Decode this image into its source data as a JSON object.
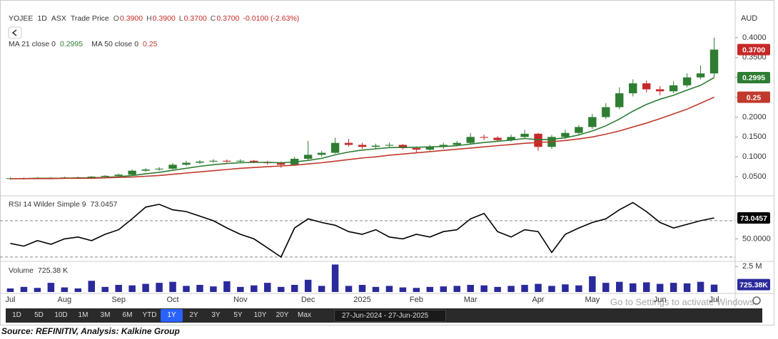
{
  "header": {
    "symbol": "YOJEE",
    "interval": "1D",
    "exchange": "ASX",
    "price_type": "Trade Price",
    "ohlc": [
      {
        "label": "O",
        "value": "0.3900"
      },
      {
        "label": "H",
        "value": "0.3900"
      },
      {
        "label": "L",
        "value": "0.3700"
      },
      {
        "label": "C",
        "value": "0.3700"
      }
    ],
    "change": "-0.0100 (-2.63%)"
  },
  "currency": "AUD",
  "chart_data": [
    {
      "type": "candlestick",
      "open": [
        0.045,
        0.046,
        0.046,
        0.047,
        0.047,
        0.048,
        0.048,
        0.05,
        0.052,
        0.055,
        0.065,
        0.068,
        0.07,
        0.08,
        0.085,
        0.088,
        0.09,
        0.088,
        0.09,
        0.087,
        0.084,
        0.08,
        0.095,
        0.105,
        0.11,
        0.135,
        0.13,
        0.125,
        0.128,
        0.13,
        0.122,
        0.118,
        0.125,
        0.13,
        0.135,
        0.15,
        0.148,
        0.142,
        0.15,
        0.158,
        0.125,
        0.15,
        0.16,
        0.175,
        0.2,
        0.225,
        0.26,
        0.285,
        0.27,
        0.265,
        0.28,
        0.3,
        0.31
      ],
      "high": [
        0.048,
        0.048,
        0.049,
        0.049,
        0.05,
        0.05,
        0.052,
        0.054,
        0.058,
        0.068,
        0.072,
        0.074,
        0.084,
        0.09,
        0.092,
        0.094,
        0.093,
        0.094,
        0.092,
        0.09,
        0.088,
        0.1,
        0.14,
        0.115,
        0.148,
        0.145,
        0.135,
        0.133,
        0.136,
        0.132,
        0.126,
        0.13,
        0.135,
        0.14,
        0.16,
        0.156,
        0.152,
        0.156,
        0.168,
        0.16,
        0.155,
        0.168,
        0.18,
        0.208,
        0.235,
        0.275,
        0.295,
        0.292,
        0.278,
        0.29,
        0.31,
        0.33,
        0.4
      ],
      "low": [
        0.042,
        0.043,
        0.044,
        0.045,
        0.045,
        0.046,
        0.046,
        0.048,
        0.05,
        0.053,
        0.062,
        0.065,
        0.068,
        0.077,
        0.082,
        0.085,
        0.085,
        0.085,
        0.084,
        0.08,
        0.072,
        0.078,
        0.092,
        0.1,
        0.108,
        0.126,
        0.12,
        0.121,
        0.124,
        0.118,
        0.11,
        0.115,
        0.12,
        0.126,
        0.132,
        0.142,
        0.138,
        0.138,
        0.146,
        0.115,
        0.12,
        0.145,
        0.155,
        0.17,
        0.195,
        0.22,
        0.252,
        0.262,
        0.255,
        0.26,
        0.275,
        0.295,
        0.3
      ],
      "close": [
        0.046,
        0.046,
        0.047,
        0.047,
        0.048,
        0.048,
        0.05,
        0.052,
        0.055,
        0.065,
        0.068,
        0.07,
        0.08,
        0.085,
        0.088,
        0.09,
        0.088,
        0.09,
        0.087,
        0.084,
        0.08,
        0.095,
        0.105,
        0.11,
        0.135,
        0.13,
        0.125,
        0.128,
        0.13,
        0.122,
        0.118,
        0.125,
        0.13,
        0.135,
        0.15,
        0.148,
        0.142,
        0.15,
        0.158,
        0.125,
        0.15,
        0.16,
        0.175,
        0.2,
        0.225,
        0.26,
        0.285,
        0.27,
        0.265,
        0.28,
        0.3,
        0.31,
        0.37
      ],
      "last_close_label": "0.3700",
      "up_color": "#2e7d32",
      "down_color": "#c62828",
      "series": [
        {
          "name": "MA 21 close 0",
          "color": "#2e7d32",
          "values": [
            0.045,
            0.045,
            0.046,
            0.046,
            0.046,
            0.047,
            0.047,
            0.048,
            0.05,
            0.053,
            0.057,
            0.061,
            0.066,
            0.071,
            0.076,
            0.08,
            0.083,
            0.085,
            0.086,
            0.086,
            0.085,
            0.087,
            0.091,
            0.096,
            0.105,
            0.112,
            0.117,
            0.12,
            0.123,
            0.124,
            0.124,
            0.125,
            0.126,
            0.128,
            0.132,
            0.136,
            0.139,
            0.142,
            0.146,
            0.143,
            0.144,
            0.148,
            0.155,
            0.165,
            0.178,
            0.195,
            0.215,
            0.232,
            0.245,
            0.255,
            0.268,
            0.28,
            0.2995
          ]
        },
        {
          "name": "MA 50 close 0",
          "color": "#c0392b",
          "values": [
            0.045,
            0.045,
            0.045,
            0.045,
            0.046,
            0.046,
            0.046,
            0.047,
            0.048,
            0.049,
            0.051,
            0.053,
            0.056,
            0.059,
            0.062,
            0.065,
            0.068,
            0.071,
            0.073,
            0.075,
            0.077,
            0.079,
            0.082,
            0.085,
            0.089,
            0.093,
            0.097,
            0.1,
            0.104,
            0.107,
            0.11,
            0.113,
            0.116,
            0.119,
            0.122,
            0.125,
            0.128,
            0.131,
            0.134,
            0.136,
            0.138,
            0.141,
            0.145,
            0.15,
            0.157,
            0.165,
            0.175,
            0.185,
            0.196,
            0.208,
            0.22,
            0.235,
            0.25
          ]
        }
      ],
      "ylim": [
        0.007,
        0.477
      ],
      "yticks": [
        {
          "value": 0.05,
          "label": "0.0500"
        },
        {
          "value": 0.1,
          "label": "0.1000"
        },
        {
          "value": 0.15,
          "label": "0.1500"
        },
        {
          "value": 0.2,
          "label": "0.2000"
        },
        {
          "value": 0.25,
          "label": "0.2500"
        },
        {
          "value": 0.3,
          "label": "0.3000"
        },
        {
          "value": 0.35,
          "label": "0.3500"
        },
        {
          "value": 0.4,
          "label": "0.4000"
        }
      ]
    },
    {
      "type": "line",
      "series": [
        {
          "name": "RSI 14 Wilder Simple 9",
          "color": "#000000",
          "values": [
            45,
            42,
            48,
            44,
            50,
            52,
            48,
            55,
            60,
            72,
            85,
            88,
            82,
            80,
            75,
            70,
            62,
            55,
            50,
            40,
            30,
            62,
            72,
            68,
            65,
            58,
            55,
            60,
            52,
            50,
            55,
            52,
            58,
            60,
            72,
            78,
            58,
            52,
            60,
            58,
            35,
            55,
            62,
            68,
            72,
            82,
            90,
            80,
            68,
            62,
            66,
            70,
            73.0457
          ]
        }
      ],
      "reference_lines": [
        70,
        30
      ],
      "ylim": [
        26,
        95
      ],
      "yticks": [
        {
          "value": 50,
          "label": "50.0000"
        }
      ]
    },
    {
      "type": "bar",
      "categories": [
        "Jul",
        null,
        null,
        null,
        "Aug",
        null,
        null,
        null,
        "Sep",
        null,
        null,
        null,
        "Oct",
        null,
        null,
        null,
        null,
        "Nov",
        null,
        null,
        null,
        null,
        "Dec",
        null,
        null,
        null,
        "2025",
        null,
        null,
        null,
        "Feb",
        null,
        null,
        null,
        "Mar",
        null,
        null,
        null,
        null,
        "Apr",
        null,
        null,
        null,
        "May",
        null,
        null,
        null,
        null,
        "Jun",
        null,
        null,
        null,
        "Jul"
      ],
      "series": [
        {
          "name": "Volume",
          "color": "#2a2a9c",
          "legend_label": "725.38 K",
          "badge_label": "725.38K",
          "values": [
            350000,
            500000,
            400000,
            900000,
            450000,
            350000,
            1100000,
            500000,
            700000,
            650000,
            800000,
            900000,
            1000000,
            600000,
            700000,
            550000,
            1050000,
            500000,
            650000,
            900000,
            500000,
            700000,
            1200000,
            600000,
            2700000,
            600000,
            700000,
            500000,
            600000,
            450000,
            400000,
            500000,
            550000,
            600000,
            700000,
            650000,
            500000,
            600000,
            700000,
            800000,
            600000,
            750000,
            650000,
            1550000,
            900000,
            1000000,
            850000,
            950000,
            800000,
            900000,
            850000,
            1000000,
            725380
          ]
        }
      ],
      "ylim": [
        0,
        2940000
      ],
      "yticks": [
        {
          "value": 2500000,
          "label": "2.5 M"
        }
      ]
    }
  ],
  "toolbar": {
    "ranges": [
      "1D",
      "5D",
      "10D",
      "1M",
      "3M",
      "6M",
      "YTD",
      "1Y",
      "2Y",
      "3Y",
      "5Y",
      "10Y",
      "20Y",
      "Max"
    ],
    "active_index": 7,
    "date_range": "27-Jun-2024 - 27-Jun-2025"
  },
  "watermark": "Go to Settings to activate Windows.",
  "source": "Source: REFINITIV, Analysis: Kalkine Group"
}
